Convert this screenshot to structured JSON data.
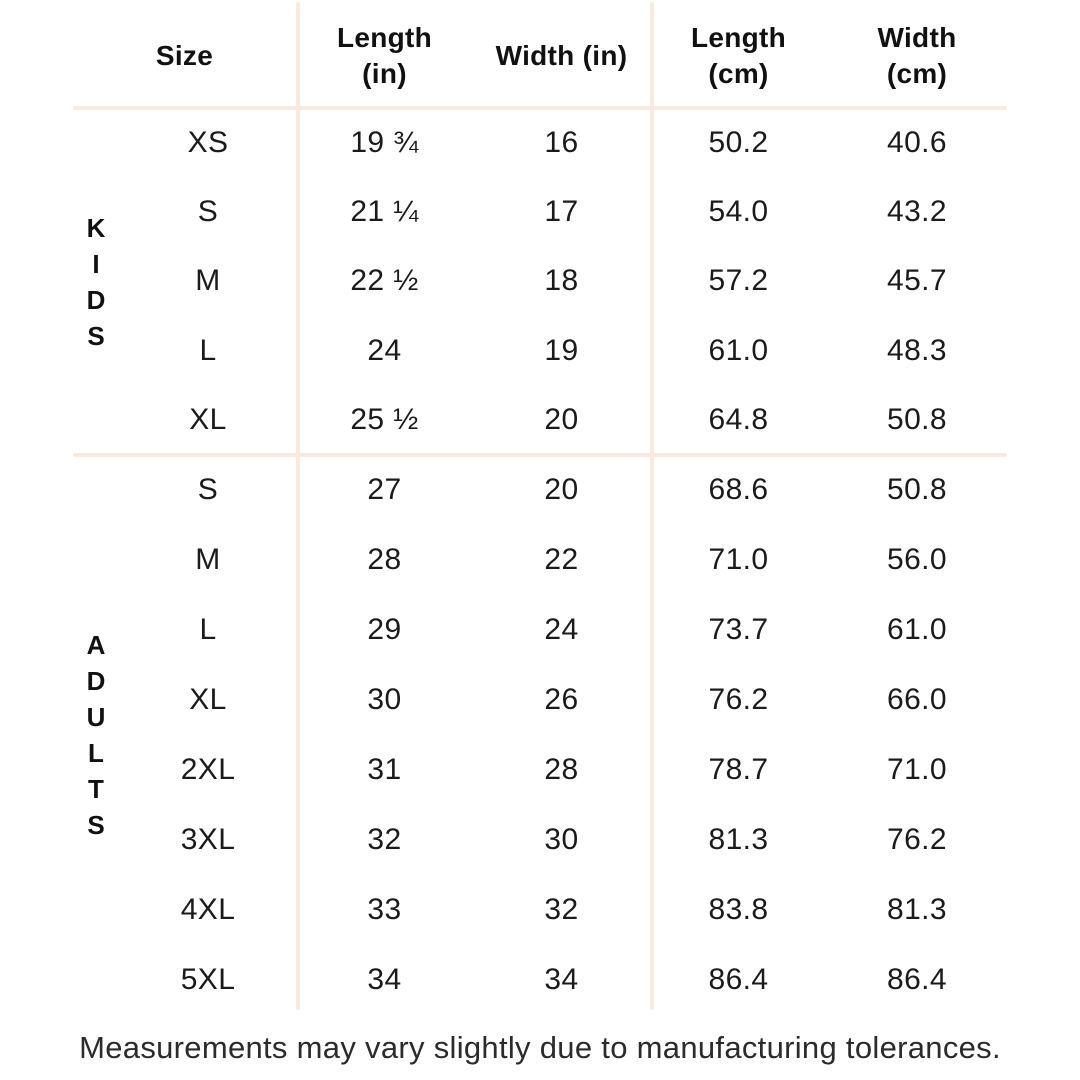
{
  "table": {
    "columns": {
      "size": "Size",
      "length_in": "Length\n(in)",
      "width_in": "Width (in)",
      "length_cm": "Length\n(cm)",
      "width_cm": "Width\n(cm)"
    },
    "sections": [
      {
        "name": "KIDS",
        "label_vertical": "K\nI\nD\nS",
        "rows": [
          {
            "size": "XS",
            "length_in": "19 ¾",
            "width_in": "16",
            "length_cm": "50.2",
            "width_cm": "40.6"
          },
          {
            "size": "S",
            "length_in": "21 ¼",
            "width_in": "17",
            "length_cm": "54.0",
            "width_cm": "43.2"
          },
          {
            "size": "M",
            "length_in": "22 ½",
            "width_in": "18",
            "length_cm": "57.2",
            "width_cm": "45.7"
          },
          {
            "size": "L",
            "length_in": "24",
            "width_in": "19",
            "length_cm": "61.0",
            "width_cm": "48.3"
          },
          {
            "size": "XL",
            "length_in": "25 ½",
            "width_in": "20",
            "length_cm": "64.8",
            "width_cm": "50.8"
          }
        ]
      },
      {
        "name": "ADULTS",
        "label_vertical": "A\nD\nU\nL\nT\nS",
        "rows": [
          {
            "size": "S",
            "length_in": "27",
            "width_in": "20",
            "length_cm": "68.6",
            "width_cm": "50.8"
          },
          {
            "size": "M",
            "length_in": "28",
            "width_in": "22",
            "length_cm": "71.0",
            "width_cm": "56.0"
          },
          {
            "size": "L",
            "length_in": "29",
            "width_in": "24",
            "length_cm": "73.7",
            "width_cm": "61.0"
          },
          {
            "size": "XL",
            "length_in": "30",
            "width_in": "26",
            "length_cm": "76.2",
            "width_cm": "66.0"
          },
          {
            "size": "2XL",
            "length_in": "31",
            "width_in": "28",
            "length_cm": "78.7",
            "width_cm": "71.0"
          },
          {
            "size": "3XL",
            "length_in": "32",
            "width_in": "30",
            "length_cm": "81.3",
            "width_cm": "76.2"
          },
          {
            "size": "4XL",
            "length_in": "33",
            "width_in": "32",
            "length_cm": "83.8",
            "width_cm": "81.3"
          },
          {
            "size": "5XL",
            "length_in": "34",
            "width_in": "34",
            "length_cm": "86.4",
            "width_cm": "86.4"
          }
        ]
      }
    ]
  },
  "footer": {
    "note": "Measurements may vary slightly due to manufacturing tolerances."
  },
  "colors": {
    "background": "#ffffff",
    "divider": "#fbe9e0",
    "text": "#1b1b1b",
    "footer_text": "#2b2b2b"
  },
  "chart_data": {
    "type": "table",
    "title": "Apparel size chart",
    "columns": [
      "Size",
      "Length (in)",
      "Width (in)",
      "Length (cm)",
      "Width (cm)"
    ],
    "row_groups": [
      {
        "group": "KIDS",
        "rows": [
          [
            "XS",
            "19 ¾",
            "16",
            "50.2",
            "40.6"
          ],
          [
            "S",
            "21 ¼",
            "17",
            "54.0",
            "43.2"
          ],
          [
            "M",
            "22 ½",
            "18",
            "57.2",
            "45.7"
          ],
          [
            "L",
            "24",
            "19",
            "61.0",
            "48.3"
          ],
          [
            "XL",
            "25 ½",
            "20",
            "64.8",
            "50.8"
          ]
        ]
      },
      {
        "group": "ADULTS",
        "rows": [
          [
            "S",
            "27",
            "20",
            "68.6",
            "50.8"
          ],
          [
            "M",
            "28",
            "22",
            "71.0",
            "56.0"
          ],
          [
            "L",
            "29",
            "24",
            "73.7",
            "61.0"
          ],
          [
            "XL",
            "30",
            "26",
            "76.2",
            "66.0"
          ],
          [
            "2XL",
            "31",
            "28",
            "78.7",
            "71.0"
          ],
          [
            "3XL",
            "32",
            "30",
            "81.3",
            "76.2"
          ],
          [
            "4XL",
            "33",
            "32",
            "83.8",
            "81.3"
          ],
          [
            "5XL",
            "34",
            "34",
            "86.4",
            "86.4"
          ]
        ]
      }
    ],
    "note": "Measurements may vary slightly due to manufacturing tolerances.",
    "layout": {
      "grid": "partial",
      "dividers": "peach lines between size / inch / cm column groups and between row groups"
    }
  }
}
